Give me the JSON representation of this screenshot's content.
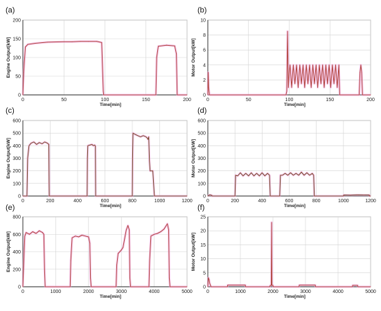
{
  "colors": {
    "trace": "#b0443a",
    "trace_dark": "#6e4a22",
    "halo": "#f2a6e4",
    "halo_cyan": "#8ef0e8",
    "axis": "#222222",
    "grid": "#d2d2d2",
    "frame": "#9a9a9a"
  },
  "chart_data": [
    {
      "panel_label": "(a)",
      "type": "line",
      "xlabel": "Time[min]",
      "ylabel": "Engine Output[kW]",
      "xlim": [
        0,
        200
      ],
      "ylim": [
        0,
        200
      ],
      "xticks": [
        0,
        50,
        100,
        150,
        200
      ],
      "yticks": [
        0,
        50,
        100,
        150,
        200
      ],
      "grid": true,
      "series": [
        {
          "x": [
            0,
            1,
            3,
            6,
            15,
            30,
            50,
            60,
            70,
            80,
            90,
            96,
            98,
            98.5,
            162,
            163,
            165,
            175,
            185,
            187,
            188,
            200
          ],
          "y": [
            0,
            60,
            128,
            135,
            138,
            141,
            142,
            142,
            143,
            143,
            143,
            140,
            10,
            0,
            0,
            100,
            130,
            133,
            131,
            110,
            0,
            0
          ]
        }
      ]
    },
    {
      "panel_label": "(b)",
      "type": "line",
      "xlabel": "Time[min]",
      "ylabel": "Motor Output[kW]",
      "xlim": [
        0,
        200
      ],
      "ylim": [
        0,
        10
      ],
      "xticks": [
        0,
        50,
        100,
        150,
        200
      ],
      "yticks": [
        0,
        2,
        4,
        6,
        8,
        10
      ],
      "grid": true,
      "series": [
        {
          "x": [
            0,
            0.5,
            1,
            2,
            96,
            97,
            98,
            99,
            100,
            101,
            103,
            105,
            107,
            109,
            111,
            113,
            115,
            117,
            119,
            121,
            123,
            125,
            127,
            129,
            131,
            133,
            135,
            137,
            139,
            141,
            143,
            145,
            147,
            149,
            151,
            153,
            155,
            157,
            159,
            161,
            162,
            186,
            187,
            188,
            189,
            190,
            200
          ],
          "y": [
            0,
            3,
            1,
            0,
            0,
            0.5,
            8.5,
            1,
            3,
            4,
            1,
            4,
            1.5,
            4,
            1,
            4,
            1.5,
            4,
            1,
            4,
            1.5,
            4,
            1,
            4,
            1.5,
            4,
            1,
            4,
            1.5,
            4,
            1,
            4,
            1.5,
            4,
            1,
            4,
            1.5,
            4,
            1,
            4,
            0,
            0,
            3,
            4,
            3,
            0,
            0
          ]
        }
      ]
    },
    {
      "panel_label": "(c)",
      "type": "line",
      "xlabel": "Time[min]",
      "ylabel": "Engine Output[kW]",
      "xlim": [
        0,
        1200
      ],
      "ylim": [
        0,
        600
      ],
      "xticks": [
        0,
        200,
        400,
        600,
        800,
        1000,
        1200
      ],
      "yticks": [
        0,
        100,
        200,
        300,
        400,
        500,
        600
      ],
      "grid": true,
      "series": [
        {
          "x": [
            0,
            30,
            35,
            45,
            60,
            80,
            100,
            120,
            140,
            160,
            180,
            190,
            192,
            193,
            470,
            472,
            475,
            490,
            505,
            515,
            525,
            530,
            532,
            800,
            802,
            805,
            820,
            840,
            860,
            880,
            900,
            910,
            915,
            920,
            925,
            930,
            950,
            960,
            962,
            1200
          ],
          "y": [
            0,
            0,
            300,
            400,
            420,
            430,
            410,
            425,
            415,
            430,
            420,
            410,
            100,
            0,
            0,
            300,
            400,
            405,
            410,
            400,
            405,
            395,
            0,
            0,
            300,
            500,
            490,
            480,
            470,
            480,
            470,
            460,
            450,
            470,
            280,
            200,
            200,
            20,
            0,
            0
          ]
        }
      ]
    },
    {
      "panel_label": "(d)",
      "type": "line",
      "xlabel": "Time[min]",
      "ylabel": "Motor Output[kW]",
      "xlim": [
        0,
        1200
      ],
      "ylim": [
        0,
        600
      ],
      "xticks": [
        0,
        200,
        400,
        600,
        800,
        1000,
        1200
      ],
      "yticks": [
        0,
        100,
        200,
        300,
        400,
        500,
        600
      ],
      "grid": true,
      "series": [
        {
          "x": [
            0,
            15,
            30,
            31,
            200,
            205,
            220,
            240,
            260,
            280,
            300,
            320,
            340,
            360,
            380,
            400,
            420,
            440,
            455,
            460,
            530,
            535,
            550,
            570,
            590,
            610,
            630,
            650,
            670,
            690,
            710,
            730,
            750,
            770,
            780,
            785,
            1000,
            1002,
            1050,
            1100,
            1150,
            1190,
            1192,
            1200
          ],
          "y": [
            0,
            10,
            5,
            0,
            0,
            165,
            160,
            185,
            160,
            180,
            160,
            185,
            160,
            180,
            160,
            185,
            160,
            180,
            165,
            0,
            0,
            165,
            165,
            180,
            165,
            185,
            165,
            180,
            165,
            190,
            165,
            185,
            165,
            180,
            165,
            0,
            0,
            8,
            7,
            9,
            8,
            8,
            0,
            0
          ]
        }
      ]
    },
    {
      "panel_label": "(e)",
      "type": "line",
      "xlabel": "Time[min]",
      "ylabel": "Engine Output[kW]",
      "xlim": [
        0,
        5000
      ],
      "ylim": [
        0,
        800
      ],
      "xticks": [
        0,
        1000,
        2000,
        3000,
        4000,
        5000
      ],
      "yticks": [
        0,
        200,
        400,
        600,
        800
      ],
      "grid": true,
      "series": [
        {
          "x": [
            0,
            20,
            60,
            100,
            200,
            300,
            400,
            500,
            600,
            640,
            660,
            680,
            1440,
            1460,
            1500,
            1600,
            1700,
            1800,
            1900,
            2000,
            2040,
            2060,
            2080,
            2840,
            2860,
            2900,
            3000,
            3050,
            3100,
            3150,
            3200,
            3240,
            3260,
            3280,
            3840,
            3860,
            3900,
            4000,
            4100,
            4200,
            4300,
            4400,
            4440,
            4460,
            4480,
            5000
          ],
          "y": [
            0,
            200,
            580,
            620,
            600,
            630,
            610,
            640,
            620,
            600,
            200,
            0,
            0,
            300,
            560,
            580,
            570,
            590,
            580,
            570,
            500,
            100,
            0,
            0,
            250,
            380,
            420,
            450,
            550,
            650,
            700,
            650,
            100,
            0,
            0,
            300,
            580,
            600,
            610,
            630,
            660,
            720,
            650,
            100,
            0,
            0
          ]
        }
      ]
    },
    {
      "panel_label": "(f)",
      "type": "line",
      "xlabel": "Time[min]",
      "ylabel": "Motor Output[kW]",
      "xlim": [
        0,
        5000
      ],
      "ylim": [
        0,
        25
      ],
      "xticks": [
        0,
        1000,
        2000,
        3000,
        4000,
        5000
      ],
      "yticks": [
        0,
        5,
        10,
        15,
        20,
        25
      ],
      "grid": true,
      "series": [
        {
          "x": [
            0,
            20,
            40,
            60,
            80,
            100,
            600,
            610,
            1150,
            1160,
            1900,
            1920,
            1950,
            1960,
            1970,
            1980,
            2000,
            2010,
            2800,
            2810,
            3300,
            3310,
            3800,
            3810,
            4440,
            4450,
            4600,
            4610,
            5000
          ],
          "y": [
            0,
            3.2,
            2.5,
            1.2,
            0.5,
            0,
            0,
            0.6,
            0.6,
            0,
            0,
            0.5,
            0.5,
            23,
            0.5,
            0.5,
            0.5,
            0,
            0,
            0.6,
            0.6,
            0,
            0,
            0,
            0,
            0.5,
            0.5,
            0,
            0
          ]
        }
      ]
    }
  ]
}
